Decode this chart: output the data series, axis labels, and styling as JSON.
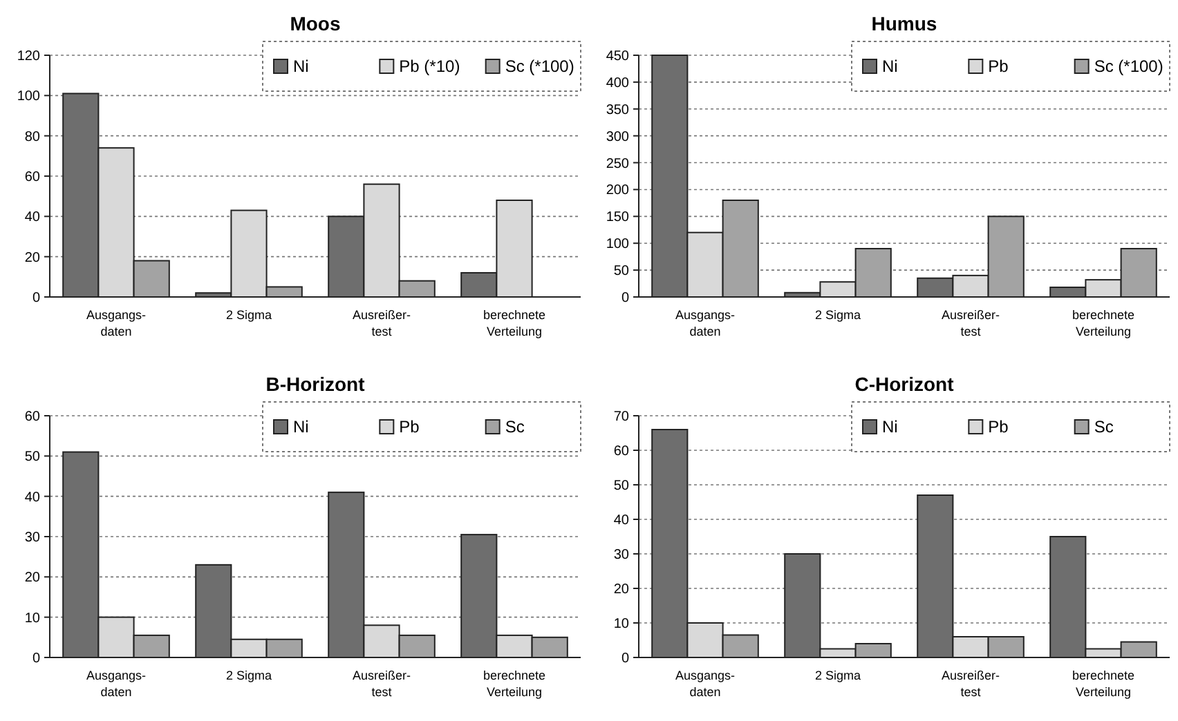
{
  "chart_data": [
    {
      "type": "bar",
      "title": "Moos",
      "categories": [
        "Ausgangs-\ndaten",
        "2 Sigma",
        "Ausreißer-\ntest",
        "berechnete\nVerteilung"
      ],
      "series": [
        {
          "name": "Ni",
          "color": "#6e6e6e",
          "values": [
            101,
            2,
            40,
            12
          ]
        },
        {
          "name": "Pb (*10)",
          "color": "#d9d9d9",
          "values": [
            74,
            43,
            56,
            48
          ]
        },
        {
          "name": "Sc (*100)",
          "color": "#a3a3a3",
          "values": [
            18,
            5,
            8,
            0
          ]
        }
      ],
      "ylim": [
        0,
        120
      ],
      "yticks": [
        0,
        20,
        40,
        60,
        80,
        100,
        120
      ],
      "grid": "y",
      "legend": "top right"
    },
    {
      "type": "bar",
      "title": "Humus",
      "categories": [
        "Ausgangs-\ndaten",
        "2 Sigma",
        "Ausreißer-\ntest",
        "berechnete\nVerteilung"
      ],
      "series": [
        {
          "name": "Ni",
          "color": "#6e6e6e",
          "values": [
            450,
            8,
            35,
            18
          ]
        },
        {
          "name": "Pb",
          "color": "#d9d9d9",
          "values": [
            120,
            28,
            40,
            32
          ]
        },
        {
          "name": "Sc (*100)",
          "color": "#a3a3a3",
          "values": [
            180,
            90,
            150,
            90
          ]
        }
      ],
      "ylim": [
        0,
        450
      ],
      "yticks": [
        0,
        50,
        100,
        150,
        200,
        250,
        300,
        350,
        400,
        450
      ],
      "grid": "y",
      "legend": "top right"
    },
    {
      "type": "bar",
      "title": "B-Horizont",
      "categories": [
        "Ausgangs-\ndaten",
        "2 Sigma",
        "Ausreißer-\ntest",
        "berechnete\nVerteilung"
      ],
      "series": [
        {
          "name": "Ni",
          "color": "#6e6e6e",
          "values": [
            51,
            23,
            41,
            30.5
          ]
        },
        {
          "name": "Pb",
          "color": "#d9d9d9",
          "values": [
            10,
            4.5,
            8,
            5.5
          ]
        },
        {
          "name": "Sc",
          "color": "#a3a3a3",
          "values": [
            5.5,
            4.5,
            5.5,
            5
          ]
        }
      ],
      "ylim": [
        0,
        60
      ],
      "yticks": [
        0,
        10,
        20,
        30,
        40,
        50,
        60
      ],
      "grid": "y",
      "legend": "top right"
    },
    {
      "type": "bar",
      "title": "C-Horizont",
      "categories": [
        "Ausgangs-\ndaten",
        "2 Sigma",
        "Ausreißer-\ntest",
        "berechnete\nVerteilung"
      ],
      "series": [
        {
          "name": "Ni",
          "color": "#6e6e6e",
          "values": [
            66,
            30,
            47,
            35
          ]
        },
        {
          "name": "Pb",
          "color": "#d9d9d9",
          "values": [
            10,
            2.5,
            6,
            2.5
          ]
        },
        {
          "name": "Sc",
          "color": "#a3a3a3",
          "values": [
            6.5,
            4,
            6,
            4.5
          ]
        }
      ],
      "ylim": [
        0,
        70
      ],
      "yticks": [
        0,
        10,
        20,
        30,
        40,
        50,
        60,
        70
      ],
      "grid": "y",
      "legend": "top right"
    }
  ]
}
